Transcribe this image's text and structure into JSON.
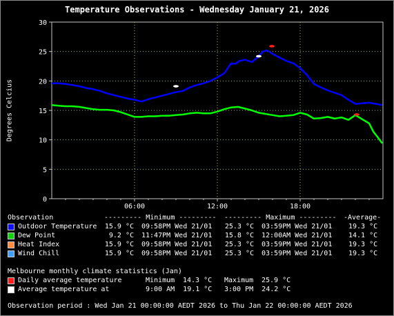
{
  "chart_data": {
    "type": "line",
    "title": "Temperature Observations - Wednesday January 21, 2026",
    "ylabel": "Degrees Celcius",
    "xlabel": "",
    "xlim": [
      0,
      24
    ],
    "ylim": [
      0,
      30
    ],
    "yticks": [
      "0",
      "5",
      "10",
      "15",
      "20",
      "25",
      "30"
    ],
    "xticks": [
      {
        "x": 6,
        "label": "06:00"
      },
      {
        "x": 12,
        "label": "12:00"
      },
      {
        "x": 18,
        "label": "18:00"
      }
    ],
    "grid": true,
    "series": [
      {
        "name": "Outdoor Temperature",
        "color": "#0000ff",
        "x": [
          0,
          0.5,
          1,
          1.5,
          2,
          2.5,
          3,
          3.5,
          4,
          4.5,
          5,
          5.5,
          6,
          6.5,
          7,
          7.5,
          8,
          8.5,
          9,
          9.5,
          10,
          10.5,
          11,
          11.5,
          12,
          12.5,
          13,
          13.3,
          13.6,
          14,
          14.5,
          15,
          15.3,
          15.6,
          16,
          16.5,
          17,
          17.5,
          18,
          18.5,
          19,
          19.5,
          20,
          20.5,
          21,
          21.5,
          22,
          22.5,
          23,
          23.5,
          23.95
        ],
        "values": [
          19.6,
          19.6,
          19.5,
          19.3,
          19.1,
          18.8,
          18.6,
          18.3,
          17.9,
          17.6,
          17.3,
          17.0,
          16.8,
          16.5,
          16.9,
          17.2,
          17.5,
          17.8,
          18.1,
          18.3,
          18.9,
          19.3,
          19.6,
          20.0,
          20.6,
          21.3,
          23.0,
          22.9,
          23.4,
          23.6,
          23.2,
          24.2,
          25.0,
          25.2,
          24.6,
          24.0,
          23.4,
          23.0,
          22.2,
          21.0,
          19.5,
          18.9,
          18.4,
          18.0,
          17.6,
          16.8,
          16.1,
          16.2,
          16.3,
          16.1,
          15.9
        ]
      },
      {
        "name": "Dew Point",
        "color": "#00ff00",
        "x": [
          0,
          0.5,
          1,
          1.5,
          2,
          2.5,
          3,
          3.5,
          4,
          4.5,
          5,
          5.5,
          6,
          6.5,
          7,
          7.5,
          8,
          8.5,
          9,
          9.5,
          10,
          10.5,
          11,
          11.5,
          12,
          12.5,
          13,
          13.5,
          14,
          14.5,
          15,
          15.5,
          16,
          16.5,
          17,
          17.5,
          18,
          18.5,
          19,
          19.5,
          20,
          20.5,
          21,
          21.5,
          22,
          22.5,
          23,
          23.3,
          23.6,
          23.95
        ],
        "values": [
          15.9,
          15.8,
          15.7,
          15.7,
          15.6,
          15.4,
          15.2,
          15.1,
          15.1,
          15.0,
          14.7,
          14.3,
          13.9,
          13.9,
          14.0,
          14.0,
          14.1,
          14.1,
          14.2,
          14.3,
          14.5,
          14.6,
          14.5,
          14.5,
          14.8,
          15.2,
          15.5,
          15.6,
          15.3,
          15.0,
          14.6,
          14.4,
          14.2,
          14.0,
          14.1,
          14.2,
          14.6,
          14.3,
          13.6,
          13.7,
          13.9,
          13.6,
          13.8,
          13.4,
          14.2,
          13.5,
          12.8,
          11.4,
          10.5,
          9.4
        ]
      }
    ],
    "markers": [
      {
        "name": "Daily average temperature",
        "color": "#ff2020",
        "points": [
          {
            "x": 22.1,
            "y": 14.3
          },
          {
            "x": 15.95,
            "y": 25.9
          }
        ]
      },
      {
        "name": "Average temperature at",
        "color": "#ffffff",
        "points": [
          {
            "x": 9.0,
            "y": 19.1
          },
          {
            "x": 15.0,
            "y": 24.2
          }
        ]
      }
    ]
  },
  "legend": {
    "header": "Observation",
    "header_min": "--------- Minimum ---------",
    "header_max": "--------- Maximum ---------",
    "header_avg": "-Average-",
    "rows": [
      {
        "name": "Outdoor Temperature",
        "color": "#1010ff",
        "min_val": "15.9 °C",
        "min_time": "09:58PM Wed 21/01",
        "max_val": "25.3 °C",
        "max_time": "03:59PM Wed 21/01",
        "avg": "19.3 °C"
      },
      {
        "name": "Dew Point",
        "color": "#10d010",
        "min_val": "9.2 °C",
        "min_time": "11:47PM Wed 21/01",
        "max_val": "15.8 °C",
        "max_time": "12:00AM Wed 21/01",
        "avg": "14.1 °C"
      },
      {
        "name": "Heat Index",
        "color": "#ff8c40",
        "min_val": "15.9 °C",
        "min_time": "09:58PM Wed 21/01",
        "max_val": "25.3 °C",
        "max_time": "03:59PM Wed 21/01",
        "avg": "19.3 °C"
      },
      {
        "name": "Wind Chill",
        "color": "#40a0ff",
        "min_val": "15.9 °C",
        "min_time": "09:58PM Wed 21/01",
        "max_val": "25.3 °C",
        "max_time": "03:59PM Wed 21/01",
        "avg": "19.3 °C"
      }
    ]
  },
  "climate": {
    "heading": "Melbourne monthly climate statistics (Jan)",
    "daily_avg_label": "Daily average temperature",
    "daily_avg_min_label": "Minimum",
    "daily_avg_min": "14.3 °C",
    "daily_avg_max_label": "Maximum",
    "daily_avg_max": "25.9 °C",
    "daily_avg_color": "#ff2020",
    "avg_at_label": "Average temperature at",
    "avg_at_1": "9:00 AM  19.1 °C",
    "avg_at_2": "3:00 PM  24.2 °C",
    "avg_at_color": "#ffffff"
  },
  "observation_period": "Observation period : Wed Jan 21 00:00:00 AEDT 2026 to Thu Jan 22 00:00:00 AEDT 2026"
}
